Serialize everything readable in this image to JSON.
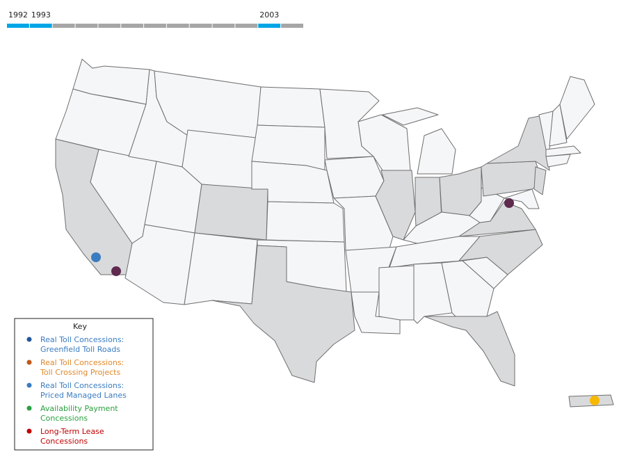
{
  "timeline": {
    "labels": [
      1992,
      1993,
      null,
      null,
      null,
      null,
      null,
      null,
      null,
      null,
      null,
      2003,
      null
    ],
    "active": [
      true,
      true,
      false,
      false,
      false,
      false,
      false,
      false,
      false,
      false,
      false,
      true,
      false
    ],
    "active_color": "#00a6e6",
    "inactive_color": "#a6a6a6"
  },
  "key": {
    "title": "Key",
    "items": [
      {
        "lines": [
          "Real Toll Concessions:",
          "Greenfield Toll Roads"
        ],
        "color": "#23579a",
        "text_color": "#3a7cc0"
      },
      {
        "lines": [
          "Real Toll Concessions:",
          "Toll Crossing Projects"
        ],
        "color": "#c0581a",
        "text_color": "#e0882b"
      },
      {
        "lines": [
          "Real Toll Concessions:",
          "Priced Managed Lanes"
        ],
        "color": "#3a7cc0",
        "text_color": "#3a7cc0"
      },
      {
        "lines": [
          "Availability Payment",
          "Concessions"
        ],
        "color": "#2aa040",
        "text_color": "#2aa040"
      },
      {
        "lines": [
          "Long-Term Lease",
          "Concessions"
        ],
        "color": "#c00000",
        "text_color": "#c00000"
      }
    ]
  }
}
